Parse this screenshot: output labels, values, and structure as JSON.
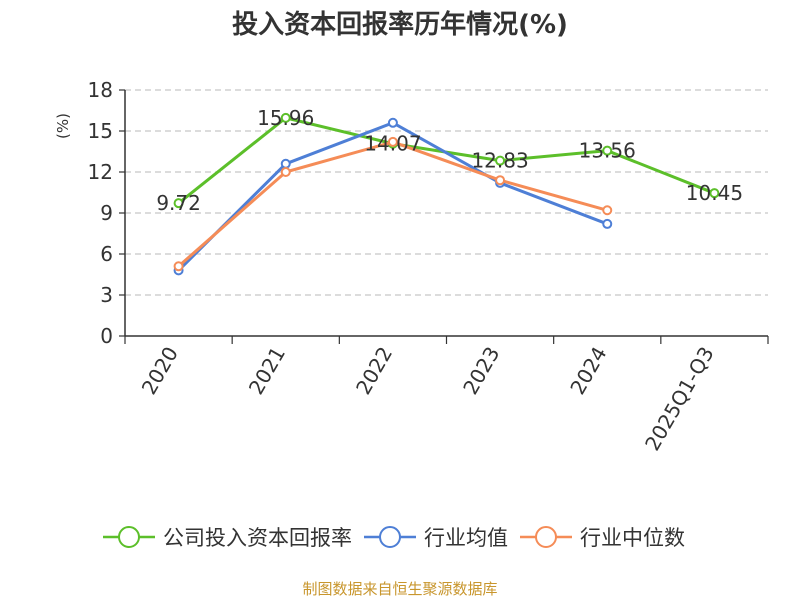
{
  "chart_data": {
    "type": "line",
    "title": "投入资本回报率历年情况(%)",
    "ylabel": "(%)",
    "xlabel": "",
    "categories": [
      "2020",
      "2021",
      "2022",
      "2023",
      "2024",
      "2025Q1-Q3"
    ],
    "ylim": [
      0,
      18
    ],
    "yticks": [
      0,
      3,
      6,
      9,
      12,
      15,
      18
    ],
    "grid": true,
    "legend_position": "bottom",
    "series": [
      {
        "name": "公司投入资本回报率",
        "color": "#5cbf2a",
        "values": [
          9.72,
          15.96,
          14.07,
          12.83,
          13.56,
          10.45
        ],
        "labels": [
          "9.72",
          "15.96",
          "14.07",
          "12.83",
          "13.56",
          "10.45"
        ]
      },
      {
        "name": "行业均值",
        "color": "#4e7fd6",
        "values": [
          4.8,
          12.6,
          15.6,
          11.2,
          8.2,
          null
        ]
      },
      {
        "name": "行业中位数",
        "color": "#f58c57",
        "values": [
          5.1,
          12.0,
          14.2,
          11.4,
          9.2,
          null
        ]
      }
    ]
  },
  "source": "制图数据来自恒生聚源数据库"
}
